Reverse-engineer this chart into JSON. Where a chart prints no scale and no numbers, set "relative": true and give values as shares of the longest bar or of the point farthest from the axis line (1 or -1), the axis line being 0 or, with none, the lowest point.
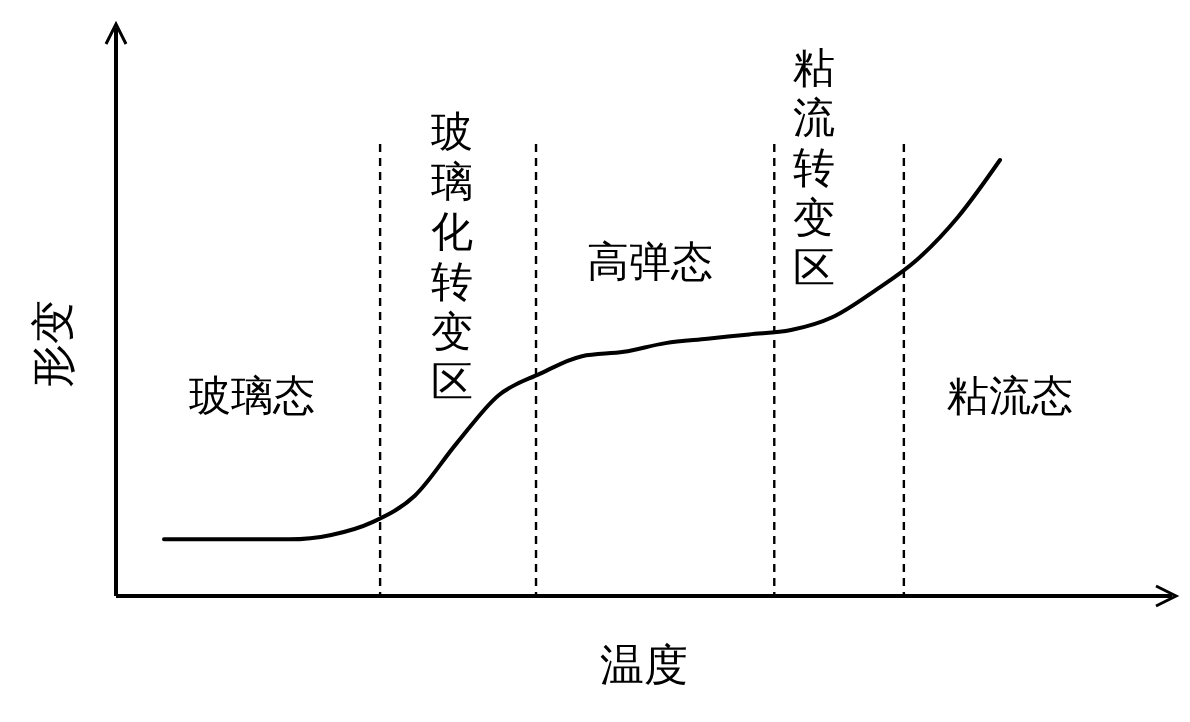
{
  "chart_data": {
    "type": "line",
    "relative": true,
    "xlabel": "温度",
    "ylabel": "形变",
    "categories": [
      null,
      null,
      null,
      null,
      null,
      null,
      null,
      null,
      null,
      null,
      null,
      null,
      null,
      null,
      null,
      null,
      null,
      null,
      null,
      null,
      null
    ],
    "series": [
      {
        "color": "#000000",
        "values": [
          0.13,
          0.13,
          0.13,
          0.13,
          0.14,
          0.17,
          0.23,
          0.35,
          0.46,
          0.51,
          0.55,
          0.56,
          0.58,
          0.59,
          0.6,
          0.61,
          0.64,
          0.7,
          0.77,
          0.87,
          1
        ]
      }
    ],
    "annotations": [
      "玻璃态",
      "玻璃化转变区",
      "高弹态",
      "粘流转变区",
      "粘流态"
    ]
  }
}
